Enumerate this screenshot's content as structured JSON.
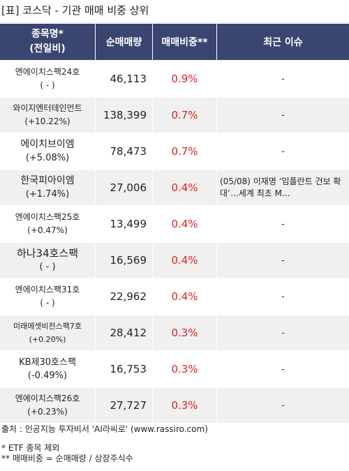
{
  "title": "[표] 코스닥 - 기관 매매 비중 상위",
  "headers": {
    "name_line1": "종목명*",
    "name_line2": "(전일비)",
    "net": "순매매량",
    "ratio": "매매비중**",
    "issue": "최근 이슈"
  },
  "rows": [
    {
      "name": "엔에이치스팩24호",
      "change": "( - )",
      "net": "46,113",
      "ratio": "0.9%",
      "issue": "-"
    },
    {
      "name": "와이지엔터테인먼트",
      "change": "(+10.22%)",
      "net": "138,399",
      "ratio": "0.7%",
      "issue": "-"
    },
    {
      "name": "에이치브이엠",
      "change": "(+5.08%)",
      "net": "78,473",
      "ratio": "0.7%",
      "issue": "-"
    },
    {
      "name": "한국피아이엠",
      "change": "(+1.74%)",
      "net": "27,006",
      "ratio": "0.4%",
      "issue": "(05/08) 이재명 ‘임플란트 건보 확대’…세계 최초 M..."
    },
    {
      "name": "엔에이치스팩25호",
      "change": "(+0.47%)",
      "net": "13,499",
      "ratio": "0.4%",
      "issue": "-"
    },
    {
      "name": "하나34호스팩",
      "change": "( - )",
      "net": "16,569",
      "ratio": "0.4%",
      "issue": "-"
    },
    {
      "name": "엔에이치스팩31호",
      "change": "( - )",
      "net": "22,962",
      "ratio": "0.4%",
      "issue": "-"
    },
    {
      "name": "미래에셋비전스팩7호",
      "change": "(+0.20%)",
      "net": "28,412",
      "ratio": "0.3%",
      "issue": "-"
    },
    {
      "name": "KB제30호스팩",
      "change": "(-0.49%)",
      "net": "16,753",
      "ratio": "0.3%",
      "issue": "-"
    },
    {
      "name": "엔에이치스팩26호",
      "change": "(+0.23%)",
      "net": "27,727",
      "ratio": "0.3%",
      "issue": "-"
    }
  ],
  "source": "출처 : 인공지능 투자비서 'AI라씨로' (www.rassiro.com)",
  "note1": "* ETF 종목 제외",
  "note2": "** 매매비중 = 순매매량 / 상장주식수",
  "colors": {
    "header_bg": "#3a4570",
    "ratio_text": "#e02020",
    "even_row": "#f0f0f0"
  }
}
